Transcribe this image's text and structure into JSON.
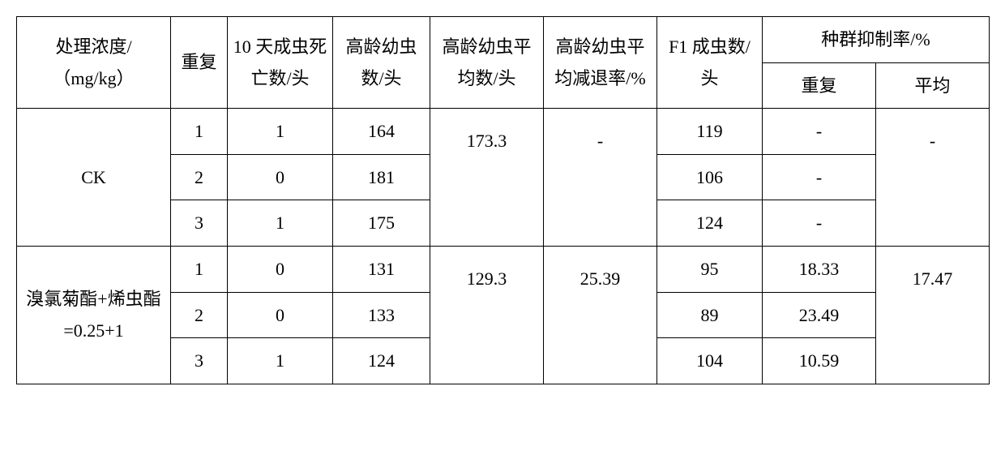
{
  "headers": {
    "treatment": "处理浓度/（mg/kg）",
    "rep": "重复",
    "day10": "10 天成虫死亡数/头",
    "larva": "高龄幼虫数/头",
    "larva_avg": "高龄幼虫平均数/头",
    "larva_reduce": "高龄幼虫平均减退率/%",
    "f1": "F1 成虫数/头",
    "pop_inhibit": "种群抑制率/%",
    "pop_rep": "重复",
    "pop_avg": "平均"
  },
  "groups": [
    {
      "treatment": "CK",
      "larva_avg": "173.3",
      "larva_reduce": "-",
      "pop_avg": "-",
      "rows": [
        {
          "rep": "1",
          "day10": "1",
          "larva": "164",
          "f1": "119",
          "pop_rep": "-"
        },
        {
          "rep": "2",
          "day10": "0",
          "larva": "181",
          "f1": "106",
          "pop_rep": "-"
        },
        {
          "rep": "3",
          "day10": "1",
          "larva": "175",
          "f1": "124",
          "pop_rep": "-"
        }
      ]
    },
    {
      "treatment": "溴氯菊酯+烯虫酯=0.25+1",
      "larva_avg": "129.3",
      "larva_reduce": "25.39",
      "pop_avg": "17.47",
      "rows": [
        {
          "rep": "1",
          "day10": "0",
          "larva": "131",
          "f1": "95",
          "pop_rep": "18.33"
        },
        {
          "rep": "2",
          "day10": "0",
          "larva": "133",
          "f1": "89",
          "pop_rep": "23.49"
        },
        {
          "rep": "3",
          "day10": "1",
          "larva": "124",
          "f1": "104",
          "pop_rep": "10.59"
        }
      ]
    }
  ]
}
